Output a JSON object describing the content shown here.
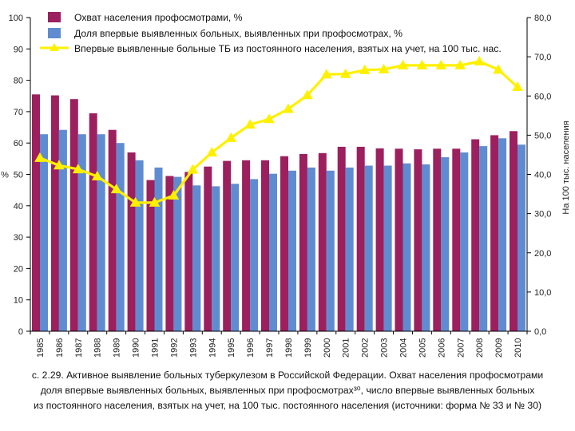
{
  "chart_data": {
    "type": "bar+line",
    "categories": [
      "1985",
      "1986",
      "1987",
      "1988",
      "1989",
      "1990",
      "1991",
      "1992",
      "1993",
      "1994",
      "1995",
      "1996",
      "1997",
      "1998",
      "1999",
      "2000",
      "2001",
      "2002",
      "2003",
      "2004",
      "2005",
      "2006",
      "2007",
      "2008",
      "2009",
      "2010"
    ],
    "series": [
      {
        "name": "Охват населения профосмотрами, %",
        "kind": "bar",
        "axis": "left",
        "color": "#9c1f5e",
        "values": [
          75.5,
          75.2,
          74,
          69.5,
          64.2,
          57,
          48.2,
          49.5,
          50.8,
          52.5,
          54.3,
          54.5,
          54.5,
          55.8,
          56.5,
          56.8,
          58.8,
          58.8,
          58.3,
          58.2,
          58,
          58.2,
          58.2,
          61.2,
          62.5,
          63.8
        ]
      },
      {
        "name": "Доля впервые выявленных больных, выявленных при профосмотрах, %",
        "kind": "bar",
        "axis": "left",
        "color": "#5f8cd1",
        "values": [
          62.8,
          64.2,
          62.8,
          62.8,
          60,
          54.5,
          52.2,
          49.2,
          46.5,
          46.2,
          47,
          48.5,
          50.2,
          51.2,
          52.2,
          51.2,
          52.2,
          52.8,
          52.8,
          53.5,
          53.2,
          55.5,
          57,
          59,
          61.5,
          59.5
        ]
      },
      {
        "name": "Впервые выявленные больные ТБ из постоянного населения, взятых на учет, на 100 тыс. нас.",
        "kind": "line",
        "axis": "right",
        "color": "#fff000",
        "values": [
          44.2,
          42.3,
          41.3,
          39.5,
          36.2,
          32.8,
          32.8,
          34.6,
          41.2,
          45.6,
          49.3,
          52.7,
          54.1,
          56.7,
          60.2,
          65.5,
          65.6,
          66.6,
          66.8,
          67.8,
          67.8,
          67.8,
          67.8,
          68.8,
          66.7,
          62.3
        ]
      }
    ],
    "left_axis": {
      "min": 0,
      "max": 100,
      "step": 10,
      "label": "%",
      "tick_labels": [
        "0",
        "10",
        "20",
        "30",
        "40",
        "50",
        "60",
        "70",
        "80",
        "90",
        "100"
      ]
    },
    "right_axis": {
      "min": 0,
      "max": 80,
      "step": 10,
      "label": "На 100 тыс. населения",
      "tick_labels": [
        "0,0",
        "10,0",
        "20,0",
        "30,0",
        "40,0",
        "50,0",
        "60,0",
        "70,0",
        "80,0"
      ]
    },
    "legend_position": "top-center"
  },
  "caption": {
    "line1": "с. 2.29. Активное выявление больных туберкулезом в Российской Федерации. Охват населения профосмотрами",
    "line2": "доля впервые выявленных больных, выявленных при профосмотрах³⁰, число впервые выявленных больных",
    "line3": "из постоянного населения, взятых на учет, на 100 тыс. постоянного населения (источники: форма № 33 и № 30)"
  }
}
